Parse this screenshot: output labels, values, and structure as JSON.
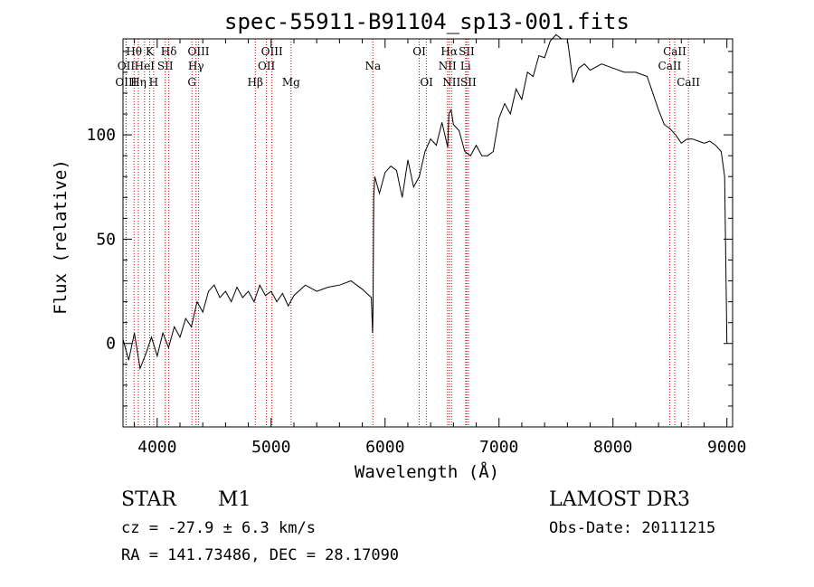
{
  "chart_data": {
    "type": "line",
    "title": "spec-55911-B91104_sp13-001.fits",
    "xlabel": "Wavelength (Å)",
    "ylabel": "Flux (relative)",
    "xlim": [
      3700,
      9050
    ],
    "ylim": [
      -40,
      146
    ],
    "xticks": [
      4000,
      5000,
      6000,
      7000,
      8000,
      9000
    ],
    "yticks": [
      0,
      50,
      100
    ],
    "grid": false,
    "series": [
      {
        "name": "flux",
        "color": "#000000",
        "x": [
          3700,
          3750,
          3800,
          3850,
          3900,
          3950,
          4000,
          4050,
          4100,
          4150,
          4200,
          4250,
          4300,
          4350,
          4400,
          4450,
          4500,
          4550,
          4600,
          4650,
          4700,
          4750,
          4800,
          4850,
          4900,
          4950,
          5000,
          5050,
          5100,
          5150,
          5200,
          5300,
          5400,
          5500,
          5600,
          5700,
          5800,
          5880,
          5890,
          5895,
          5900,
          5910,
          5950,
          6000,
          6050,
          6100,
          6150,
          6200,
          6250,
          6300,
          6350,
          6400,
          6450,
          6500,
          6550,
          6560,
          6580,
          6600,
          6650,
          6700,
          6750,
          6800,
          6850,
          6900,
          6950,
          7000,
          7050,
          7100,
          7150,
          7200,
          7250,
          7300,
          7350,
          7400,
          7450,
          7500,
          7550,
          7600,
          7620,
          7650,
          7700,
          7750,
          7800,
          7900,
          8000,
          8100,
          8200,
          8300,
          8400,
          8450,
          8500,
          8550,
          8600,
          8650,
          8700,
          8750,
          8800,
          8850,
          8900,
          8950,
          8980,
          9000
        ],
        "y": [
          2,
          -8,
          5,
          -12,
          -5,
          3,
          -6,
          5,
          -2,
          8,
          3,
          12,
          8,
          20,
          15,
          25,
          28,
          22,
          25,
          20,
          27,
          22,
          25,
          20,
          28,
          23,
          25,
          20,
          24,
          18,
          23,
          28,
          25,
          27,
          28,
          30,
          26,
          22,
          5,
          18,
          70,
          80,
          72,
          82,
          85,
          83,
          70,
          88,
          75,
          80,
          92,
          98,
          95,
          106,
          94,
          110,
          112,
          105,
          102,
          92,
          90,
          95,
          90,
          90,
          92,
          108,
          115,
          110,
          122,
          117,
          130,
          128,
          138,
          137,
          145,
          148,
          146,
          146,
          138,
          125,
          132,
          134,
          131,
          134,
          132,
          130,
          130,
          128,
          112,
          105,
          103,
          100,
          96,
          98,
          98,
          97,
          96,
          97,
          95,
          92,
          80,
          0
        ]
      }
    ]
  },
  "spectral_lines": [
    {
      "label": "Hθ",
      "wl": 3797,
      "row": 1
    },
    {
      "label": "OII",
      "wl": 3727,
      "row": 2
    },
    {
      "label": "OIII",
      "wl": 3727,
      "row": 3
    },
    {
      "label": "K",
      "wl": 3934,
      "row": 1
    },
    {
      "label": "HeI",
      "wl": 3889,
      "row": 2
    },
    {
      "label": "Hη",
      "wl": 3835,
      "row": 3
    },
    {
      "label": "Hδ",
      "wl": 4102,
      "row": 1
    },
    {
      "label": "SII",
      "wl": 4071,
      "row": 2
    },
    {
      "label": "H",
      "wl": 3969,
      "row": 3
    },
    {
      "label": "OIII",
      "wl": 4363,
      "row": 1
    },
    {
      "label": "Hγ",
      "wl": 4341,
      "row": 2
    },
    {
      "label": "G",
      "wl": 4305,
      "row": 3
    },
    {
      "label": "OIII",
      "wl": 5007,
      "row": 1
    },
    {
      "label": "OII",
      "wl": 4959,
      "row": 2
    },
    {
      "label": "Hβ",
      "wl": 4861,
      "row": 3
    },
    {
      "label": "Mg",
      "wl": 5175,
      "row": 3
    },
    {
      "label": "Na",
      "wl": 5893,
      "row": 2
    },
    {
      "label": "OI",
      "wl": 6300,
      "row": 1
    },
    {
      "label": "OI",
      "wl": 6364,
      "row": 3
    },
    {
      "label": "Hα",
      "wl": 6563,
      "row": 1
    },
    {
      "label": "NII",
      "wl": 6548,
      "row": 2
    },
    {
      "label": "NII",
      "wl": 6583,
      "row": 3
    },
    {
      "label": "SII",
      "wl": 6716,
      "row": 1
    },
    {
      "label": "Li",
      "wl": 6707,
      "row": 2
    },
    {
      "label": "SII",
      "wl": 6731,
      "row": 3
    },
    {
      "label": "CaII",
      "wl": 8542,
      "row": 1
    },
    {
      "label": "CaII",
      "wl": 8498,
      "row": 2
    },
    {
      "label": "CaII",
      "wl": 8662,
      "row": 3
    }
  ],
  "info": {
    "class": "STAR",
    "subclass": "M1",
    "survey": "LAMOST DR3",
    "redshift": "cz = -27.9 ± 6.3 km/s",
    "obs_date": "Obs-Date: 20111215",
    "coords": "RA = 141.73486, DEC =  28.17090"
  },
  "colors": {
    "line_marker": "#cc0000",
    "spectrum": "#000000",
    "frame": "#000000"
  }
}
